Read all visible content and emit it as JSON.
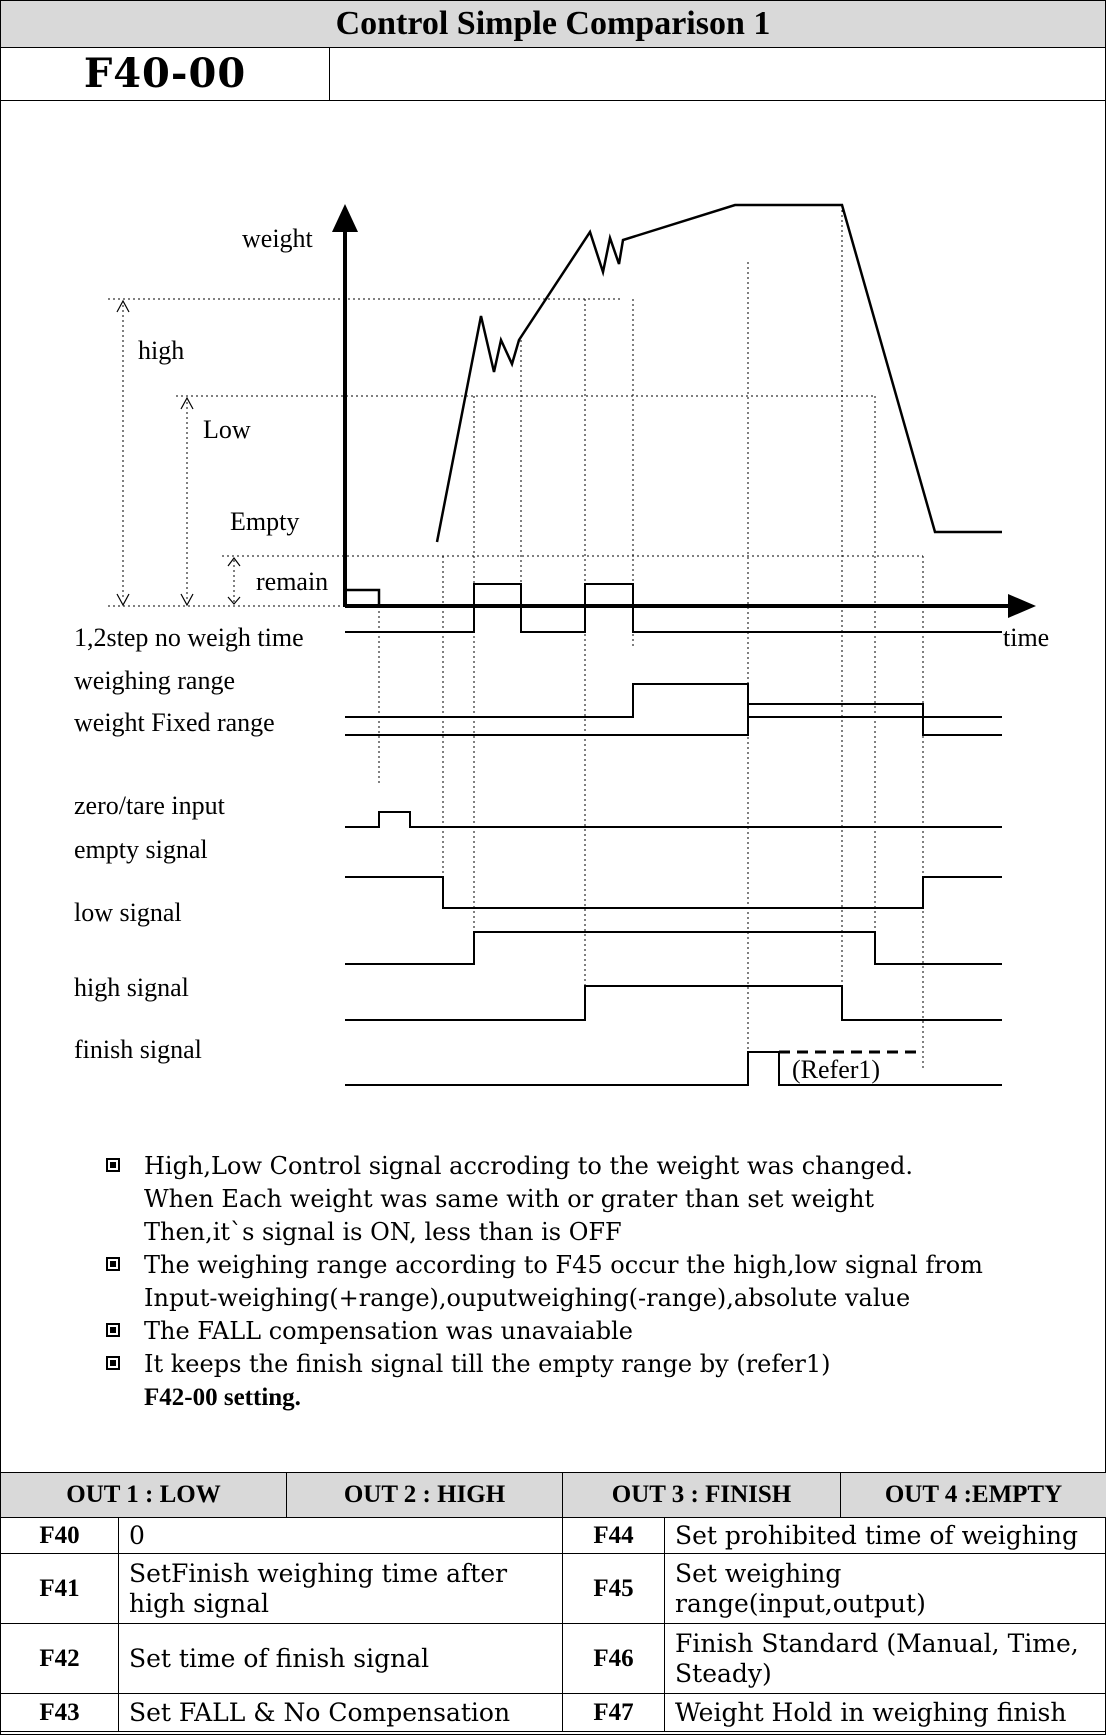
{
  "header": {
    "title": "Control Simple Comparison 1",
    "code": "F40-00"
  },
  "diagram": {
    "axis_weight": "weight",
    "axis_time": "time",
    "levels": {
      "high": "high",
      "low": "Low",
      "empty": "Empty",
      "remain": "remain"
    },
    "signals": {
      "no_weigh": "1,2step no weigh time",
      "weighing_range": "weighing range",
      "fixed_range": "weight Fixed range",
      "zero_tare": "zero/tare input",
      "empty_signal": "empty signal",
      "low_signal": "low signal",
      "high_signal": "high signal",
      "finish_signal": "finish signal"
    },
    "refer": "(Refer1)"
  },
  "notes": [
    {
      "lines": [
        "High,Low Control signal accroding to the weight was changed.",
        "When Each weight was same with or grater than set weight",
        "Then,it`s signal is ON, less than is OFF"
      ]
    },
    {
      "lines": [
        "The weighing range according to F45 occur the high,low signal from",
        "Input-weighing(+range),ouputweighing(-range),absolute value"
      ]
    },
    {
      "lines": [
        "The FALL compensation was unavaiable"
      ]
    },
    {
      "lines": [
        "It keeps the finish signal till the empty range by (refer1)"
      ],
      "extra": "F42-00 setting."
    }
  ],
  "table": {
    "outputs": [
      "OUT 1 : LOW",
      "OUT 2 : HIGH",
      "OUT 3 : FINISH",
      "OUT 4 :EMPTY"
    ],
    "rows": [
      {
        "c1": "F40",
        "d1": "0",
        "c2": "F44",
        "d2": "Set prohibited time of weighing"
      },
      {
        "c1": "F41",
        "d1": "SetFinish weighing time after high signal",
        "c2": "F45",
        "d2": "Set weighing range(input,output)"
      },
      {
        "c1": "F42",
        "d1": "Set time of finish signal",
        "c2": "F46",
        "d2": "Finish Standard (Manual, Time, Steady)"
      },
      {
        "c1": "F43",
        "d1": "Set FALL & No Compensation",
        "c2": "F47",
        "d2": "Weight Hold in weighing finish"
      }
    ]
  }
}
